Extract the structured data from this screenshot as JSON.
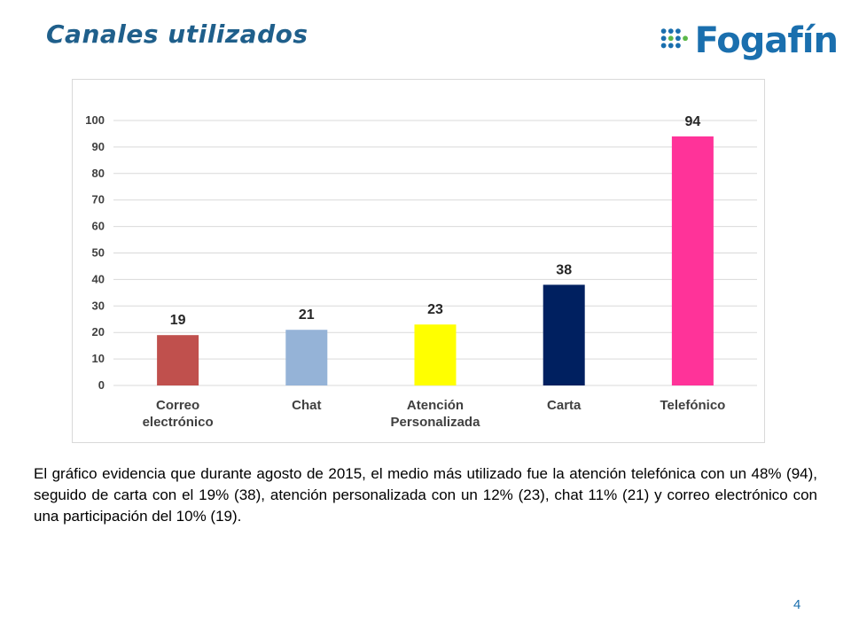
{
  "slide": {
    "title": "Canales utilizados",
    "logo_text": "Fogafín",
    "description": "El gráfico evidencia que durante agosto de 2015, el medio más utilizado fue la atención telefónica con un 48% (94), seguido de carta con el 19% (38), atención personalizada con un 12% (23), chat 11% (21)  y correo electrónico con una participación del 10% (19).",
    "page_number": "4"
  },
  "colors": {
    "title": "#1f5f8b",
    "logo_blue": "#1a6fae",
    "logo_green": "#5bb848"
  },
  "chart_data": {
    "type": "bar",
    "categories": [
      [
        "Correo",
        "electrónico"
      ],
      [
        "Chat"
      ],
      [
        "Atención",
        "Personalizada"
      ],
      [
        "Carta"
      ],
      [
        "Telefónico"
      ]
    ],
    "values": [
      19,
      21,
      23,
      38,
      94
    ],
    "bar_colors": [
      "#c0504d",
      "#95b3d7",
      "#ffff00",
      "#002060",
      "#ff3399"
    ],
    "yticks": [
      0,
      10,
      20,
      30,
      40,
      50,
      60,
      70,
      80,
      90,
      100
    ],
    "ylim": [
      0,
      100
    ],
    "grid": true,
    "data_labels": true,
    "title": "",
    "xlabel": "",
    "ylabel": ""
  }
}
